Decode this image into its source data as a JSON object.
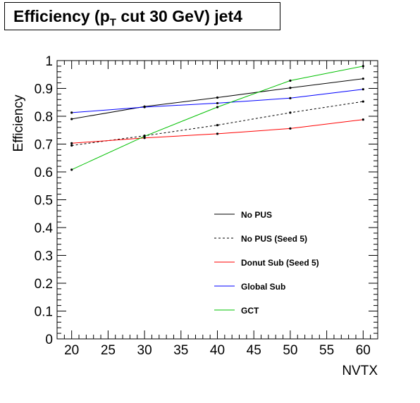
{
  "chart_data": {
    "type": "line",
    "title_main": "Efficiency (p",
    "title_sub": "T",
    "title_rest": " cut 30 GeV) jet4",
    "xlabel": "NVTX",
    "ylabel": "Efficiency",
    "xlim": [
      18,
      62
    ],
    "ylim": [
      0,
      1
    ],
    "x_ticks": [
      20,
      25,
      30,
      35,
      40,
      45,
      50,
      55,
      60
    ],
    "y_ticks": [
      0,
      0.1,
      0.2,
      0.3,
      0.4,
      0.5,
      0.6,
      0.7,
      0.8,
      0.9,
      1
    ],
    "y_tick_labels": [
      "0",
      "0.1",
      "0.2",
      "0.3",
      "0.4",
      "0.5",
      "0.6",
      "0.7",
      "0.8",
      "0.9",
      "1"
    ],
    "x": [
      20,
      30,
      40,
      50,
      60
    ],
    "grid": false,
    "legend_position": "center-right",
    "series": [
      {
        "name": "No PUS",
        "color": "#000000",
        "dash": "solid",
        "values": [
          0.79,
          0.835,
          0.867,
          0.902,
          0.935
        ]
      },
      {
        "name": "No PUS (Seed 5)",
        "color": "#000000",
        "dash": "dashed",
        "values": [
          0.695,
          0.73,
          0.768,
          0.813,
          0.853
        ]
      },
      {
        "name": "Donut Sub (Seed 5)",
        "color": "#ff0000",
        "dash": "solid",
        "values": [
          0.703,
          0.722,
          0.737,
          0.756,
          0.788
        ]
      },
      {
        "name": "Global Sub",
        "color": "#0000ff",
        "dash": "solid",
        "values": [
          0.813,
          0.833,
          0.847,
          0.865,
          0.897
        ]
      },
      {
        "name": "GCT",
        "color": "#00c000",
        "dash": "solid",
        "values": [
          0.608,
          0.728,
          0.833,
          0.928,
          0.98
        ]
      }
    ]
  }
}
